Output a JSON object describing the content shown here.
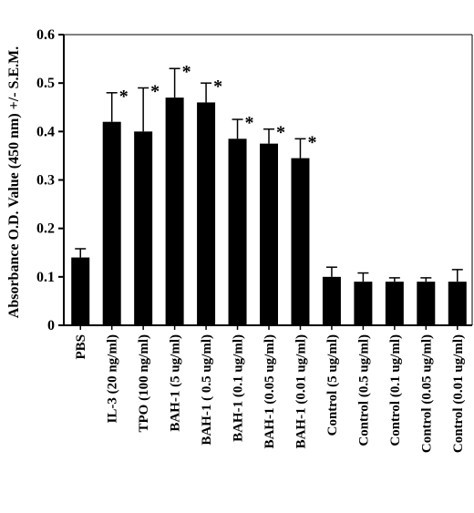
{
  "chart_data": {
    "type": "bar",
    "title": "",
    "xlabel": "",
    "ylabel": "Absorbance O.D. Value (450 nm) +/- S.E.M.",
    "ylim": [
      0,
      0.6
    ],
    "yticks": [
      "0",
      "0.1",
      "0.2",
      "0.3",
      "0.4",
      "0.5",
      "0.6"
    ],
    "grid": false,
    "bar_color": "#000000",
    "categories": [
      "PBS",
      "IL-3 (20 ng/ml)",
      "TPO (100 ng/ml)",
      "BAH-1 (5 ug/ml)",
      "BAH-1 ( 0.5 ug/ml)",
      "BAH-1 (0.1 ug/ml)",
      "BAH-1 (0.05 ug/ml)",
      "BAH-1 (0.01 ug/ml)",
      "Control (5 ug/ml)",
      "Control (0.5 ug/ml)",
      "Control (0.1 ug/ml)",
      "Control (0.05 ug/ml)",
      "Control (0.01 ug/ml)"
    ],
    "values": [
      0.14,
      0.42,
      0.4,
      0.47,
      0.46,
      0.385,
      0.375,
      0.345,
      0.1,
      0.09,
      0.09,
      0.09,
      0.09
    ],
    "errors": [
      0.018,
      0.06,
      0.09,
      0.06,
      0.04,
      0.04,
      0.03,
      0.04,
      0.02,
      0.018,
      0.008,
      0.008,
      0.025
    ],
    "significance": [
      "",
      "*",
      "*",
      "*",
      "*",
      "*",
      "*",
      "*",
      "",
      "",
      "",
      "",
      ""
    ]
  }
}
